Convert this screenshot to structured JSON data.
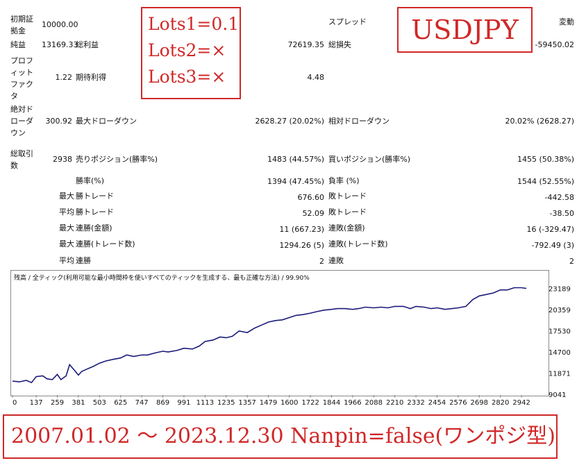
{
  "stats": {
    "initial_deposit": {
      "label": "初期証拠金",
      "value": "10000.00"
    },
    "spread": {
      "label": "スプレッド",
      "value": "変動"
    },
    "net_profit": {
      "label": "純益",
      "value": "13169.33"
    },
    "gross_profit": {
      "label": "総利益",
      "value": "72619.35"
    },
    "gross_loss": {
      "label": "総損失",
      "value": "-59450.02"
    },
    "profit_factor": {
      "label": "プロフィットファクタ",
      "value": "1.22"
    },
    "expected_payoff": {
      "label": "期待利得",
      "value": "4.48"
    },
    "absolute_drawdown": {
      "label": "絶対ドローダウン",
      "value": "300.92"
    },
    "max_drawdown": {
      "label": "最大ドローダウン",
      "value": "2628.27 (20.02%)"
    },
    "relative_drawdown": {
      "label": "相対ドローダウン",
      "value": "20.02% (2628.27)"
    },
    "total_trades": {
      "label": "総取引数",
      "value": "2938"
    },
    "short_positions": {
      "label": "売りポジション(勝率%)",
      "value": "1483 (44.57%)"
    },
    "long_positions": {
      "label": "買いポジション(勝率%)",
      "value": "1455 (50.38%)"
    },
    "win_rate": {
      "label": "勝率(%)",
      "value": "1394 (47.45%)"
    },
    "loss_rate": {
      "label": "負率 (%)",
      "value": "1544 (52.55%)"
    },
    "rows": [
      {
        "prefix": "最大",
        "win_label": "勝トレード",
        "win_value": "676.60",
        "loss_label": "敗トレード",
        "loss_value": "-442.58"
      },
      {
        "prefix": "平均",
        "win_label": "勝トレード",
        "win_value": "52.09",
        "loss_label": "敗トレード",
        "loss_value": "-38.50"
      },
      {
        "prefix": "最大",
        "win_label": "連勝(金額)",
        "win_value": "11 (667.23)",
        "loss_label": "連敗(金額)",
        "loss_value": "16 (-329.47)"
      },
      {
        "prefix": "最大",
        "win_label": "連勝(トレード数)",
        "win_value": "1294.26 (5)",
        "loss_label": "連敗(トレード数)",
        "loss_value": "-792.49 (3)"
      },
      {
        "prefix": "平均",
        "win_label": "連勝",
        "win_value": "2",
        "loss_label": "連敗",
        "loss_value": "2"
      }
    ]
  },
  "annotations": {
    "lots": [
      "Lots1=0.1",
      "Lots2=×",
      "Lots3=×"
    ],
    "symbol": "USDJPY",
    "period": "2007.01.02 ～ 2023.12.30 Nanpin=false(ワンポジ型)",
    "color": "#d02828"
  },
  "chart_data": {
    "type": "line",
    "header": "残高 / 全ティック(利用可能な最小時間枠を使いすべてのティックを生成する、最も正確な方法) / 99.90%",
    "line_color": "#1a1a7a",
    "x_ticks": [
      0,
      137,
      259,
      381,
      503,
      625,
      747,
      869,
      991,
      1113,
      1235,
      1357,
      1479,
      1600,
      1722,
      1844,
      1966,
      2088,
      2210,
      2332,
      2454,
      2576,
      2698,
      2820,
      2942
    ],
    "y_ticks": [
      9041,
      11871,
      14700,
      17530,
      20359,
      23189
    ],
    "xlim": [
      0,
      3050
    ],
    "ylim": [
      9041,
      23900
    ],
    "series": [
      {
        "x": [
          0,
          40,
          80,
          110,
          137,
          175,
          200,
          230,
          259,
          280,
          310,
          330,
          360,
          381,
          400,
          430,
          470,
          503,
          540,
          580,
          625,
          660,
          700,
          747,
          780,
          830,
          869,
          900,
          950,
          991,
          1040,
          1080,
          1113,
          1160,
          1200,
          1235,
          1270,
          1310,
          1357,
          1400,
          1440,
          1479,
          1520,
          1560,
          1600,
          1640,
          1680,
          1722,
          1760,
          1800,
          1844,
          1880,
          1920,
          1966,
          2000,
          2040,
          2088,
          2130,
          2170,
          2210,
          2260,
          2300,
          2332,
          2380,
          2420,
          2454,
          2500,
          2540,
          2576,
          2620,
          2660,
          2698,
          2740,
          2780,
          2820,
          2860,
          2900,
          2942,
          2970
        ],
        "y": [
          10800,
          10700,
          10900,
          10600,
          11400,
          11500,
          11100,
          11000,
          11700,
          11000,
          11500,
          13000,
          12200,
          11600,
          12100,
          12400,
          12800,
          13200,
          13500,
          13700,
          13900,
          14300,
          14100,
          14300,
          14300,
          14600,
          14800,
          14700,
          14900,
          15200,
          15100,
          15500,
          16100,
          16300,
          16700,
          16600,
          16800,
          17500,
          17300,
          17900,
          18300,
          18700,
          18900,
          19000,
          19300,
          19600,
          19700,
          19900,
          20100,
          20300,
          20400,
          20500,
          20500,
          20400,
          20500,
          20700,
          20600,
          20700,
          20600,
          20800,
          20800,
          20500,
          20800,
          20700,
          20500,
          20600,
          20400,
          20500,
          20600,
          20800,
          21700,
          22200,
          22400,
          22600,
          23000,
          23000,
          23300,
          23300,
          23200
        ]
      }
    ]
  }
}
